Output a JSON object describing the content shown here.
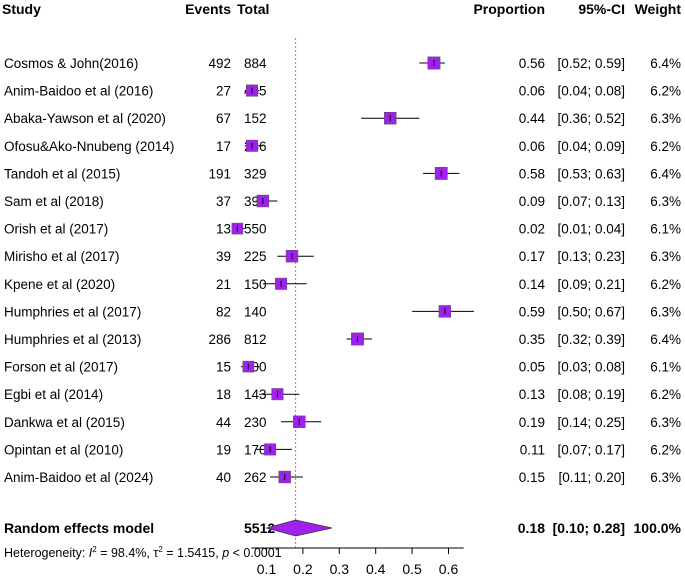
{
  "headers": {
    "study": "Study",
    "events": "Events",
    "total": "Total",
    "proportion": "Proportion",
    "ci": "95%-CI",
    "weight": "Weight"
  },
  "chart_data": {
    "type": "forest",
    "x_ticks": [
      "0.1",
      "0.2",
      "0.3",
      "0.4",
      "0.5",
      "0.6"
    ],
    "x_tick_values": [
      0.1,
      0.2,
      0.3,
      0.4,
      0.5,
      0.6
    ],
    "xlim": [
      0.05,
      0.65
    ],
    "reference_line": 0.18,
    "colors": {
      "box": "#a020f0",
      "diamond": "#a020f0",
      "reference": "#b070b0"
    },
    "studies": [
      {
        "name": "Cosmos & John(2016)",
        "events": "492",
        "total": "884",
        "proportion": 0.56,
        "lower": 0.52,
        "upper": 0.59,
        "prop_label": "0.56",
        "ci_label": "[0.52; 0.59]",
        "weight_label": "6.4%",
        "weight": 6.4
      },
      {
        "name": "Anim-Baidoo et al (2016)",
        "events": "27",
        "total": "485",
        "proportion": 0.06,
        "lower": 0.04,
        "upper": 0.08,
        "prop_label": "0.06",
        "ci_label": "[0.04; 0.08]",
        "weight_label": "6.2%",
        "weight": 6.2
      },
      {
        "name": "Abaka-Yawson et al (2020)",
        "events": "67",
        "total": "152",
        "proportion": 0.44,
        "lower": 0.36,
        "upper": 0.52,
        "prop_label": "0.44",
        "ci_label": "[0.36; 0.52]",
        "weight_label": "6.3%",
        "weight": 6.3
      },
      {
        "name": "Ofosu&Ako-Nnubeng (2014)",
        "events": "17",
        "total": "286",
        "proportion": 0.06,
        "lower": 0.04,
        "upper": 0.09,
        "prop_label": "0.06",
        "ci_label": "[0.04; 0.09]",
        "weight_label": "6.2%",
        "weight": 6.2
      },
      {
        "name": "Tandoh et al (2015)",
        "events": "191",
        "total": "329",
        "proportion": 0.58,
        "lower": 0.53,
        "upper": 0.63,
        "prop_label": "0.58",
        "ci_label": "[0.53; 0.63]",
        "weight_label": "6.4%",
        "weight": 6.4
      },
      {
        "name": "Sam et al (2018)",
        "events": "37",
        "total": "394",
        "proportion": 0.09,
        "lower": 0.07,
        "upper": 0.13,
        "prop_label": "0.09",
        "ci_label": "[0.07; 0.13]",
        "weight_label": "6.3%",
        "weight": 6.3
      },
      {
        "name": "Orish et al (2017)",
        "events": "13",
        "total": "550",
        "proportion": 0.02,
        "lower": 0.01,
        "upper": 0.04,
        "prop_label": "0.02",
        "ci_label": "[0.01; 0.04]",
        "weight_label": "6.1%",
        "weight": 6.1
      },
      {
        "name": "Mirisho et al (2017)",
        "events": "39",
        "total": "225",
        "proportion": 0.17,
        "lower": 0.13,
        "upper": 0.23,
        "prop_label": "0.17",
        "ci_label": "[0.13; 0.23]",
        "weight_label": "6.3%",
        "weight": 6.3
      },
      {
        "name": "Kpene et al (2020)",
        "events": "21",
        "total": "150",
        "proportion": 0.14,
        "lower": 0.09,
        "upper": 0.21,
        "prop_label": "0.14",
        "ci_label": "[0.09; 0.21]",
        "weight_label": "6.2%",
        "weight": 6.2
      },
      {
        "name": "Humphries et al (2017)",
        "events": "82",
        "total": "140",
        "proportion": 0.59,
        "lower": 0.5,
        "upper": 0.67,
        "prop_label": "0.59",
        "ci_label": "[0.50; 0.67]",
        "weight_label": "6.3%",
        "weight": 6.3
      },
      {
        "name": "Humphries et al (2013)",
        "events": "286",
        "total": "812",
        "proportion": 0.35,
        "lower": 0.32,
        "upper": 0.39,
        "prop_label": "0.35",
        "ci_label": "[0.32; 0.39]",
        "weight_label": "6.4%",
        "weight": 6.4
      },
      {
        "name": "Forson et al (2017)",
        "events": "15",
        "total": "300",
        "proportion": 0.05,
        "lower": 0.03,
        "upper": 0.08,
        "prop_label": "0.05",
        "ci_label": "[0.03; 0.08]",
        "weight_label": "6.1%",
        "weight": 6.1
      },
      {
        "name": "Egbi et al (2014)",
        "events": "18",
        "total": "143",
        "proportion": 0.13,
        "lower": 0.08,
        "upper": 0.19,
        "prop_label": "0.13",
        "ci_label": "[0.08; 0.19]",
        "weight_label": "6.2%",
        "weight": 6.2
      },
      {
        "name": "Dankwa et al (2015)",
        "events": "44",
        "total": "230",
        "proportion": 0.19,
        "lower": 0.14,
        "upper": 0.25,
        "prop_label": "0.19",
        "ci_label": "[0.14; 0.25]",
        "weight_label": "6.3%",
        "weight": 6.3
      },
      {
        "name": "Opintan et al (2010)",
        "events": "19",
        "total": "170",
        "proportion": 0.11,
        "lower": 0.07,
        "upper": 0.17,
        "prop_label": "0.11",
        "ci_label": "[0.07; 0.17]",
        "weight_label": "6.2%",
        "weight": 6.2
      },
      {
        "name": "Anim-Baidoo et al (2024)",
        "events": "40",
        "total": "262",
        "proportion": 0.15,
        "lower": 0.11,
        "upper": 0.2,
        "prop_label": "0.15",
        "ci_label": "[0.11; 0.20]",
        "weight_label": "6.3%",
        "weight": 6.3
      }
    ],
    "pooled": {
      "name": "Random effects model",
      "total": "5512",
      "proportion": 0.18,
      "lower": 0.1,
      "upper": 0.28,
      "prop_label": "0.18",
      "ci_label": "[0.10; 0.28]",
      "weight_label": "100.0%"
    },
    "heterogeneity": {
      "prefix": "Heterogeneity: ",
      "i2_symbol": "I",
      "i2_value": " = 98.4%, ",
      "tau2_symbol": "τ",
      "tau2_value": " = 1.5415, ",
      "p_symbol": "p",
      "p_value": " < 0.0001"
    }
  }
}
